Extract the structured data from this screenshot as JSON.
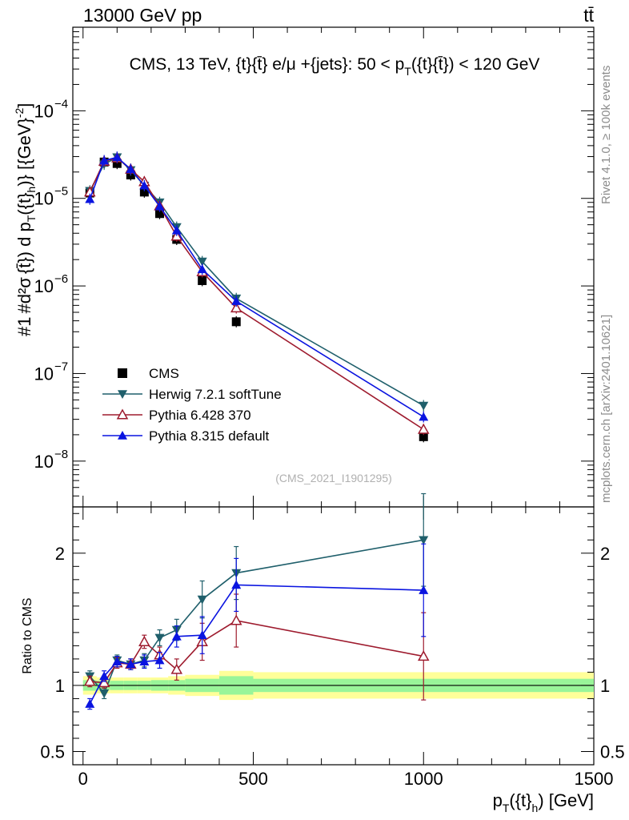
{
  "header": {
    "left": "13000 GeV pp",
    "right": "tt̄"
  },
  "side_labels": {
    "rivet": "Rivet 4.1.0, ≥ 100k events",
    "mcplots": "mcplots.cern.ch [arXiv:2401.10621]"
  },
  "colors": {
    "cms": "#000000",
    "herwig": "#1f5f6b",
    "pythia6": "#9e1b2e",
    "pythia8": "#0a14e0",
    "band_inner": "#99f599",
    "band_outer": "#ffff99"
  },
  "chart_data": [
    {
      "type": "line",
      "panel": "main",
      "title": "CMS, 13 TeV, {t}{t̄} e/μ +{jets}: 50 <  p_T({t}{t̄}) < 120 GeV",
      "title_parts": {
        "pre": "CMS, 13 TeV, {t}{t̄} e/μ +{jets}: 50 <  p",
        "sub": "T",
        "post": "({t}{t̄}) < 120 GeV"
      },
      "watermark": "(CMS_2021_I1901295)",
      "ylabel": "#1/σ_norm # d²σ/d p_T({t̄}) d p_T({t}_h) [{GeV}⁻²]",
      "ylabel_parts": {
        "top_a": "#",
        "top_b": "1",
        "bot_a": "#σ",
        "bot_b": "norm",
        "num": "#d²σ",
        "den": "d p",
        "den_sub": "T",
        "den_post": "({t",
        "tail": "{t̄}) d p",
        "tail_sub": "T",
        "tail_post": "({t}",
        "tail_sub2": "h",
        "tail_end": ")} [{GeV}",
        "tail_sup": "-2",
        "tail_close": "]"
      },
      "yscale": "log",
      "ylim": [
        3e-09,
        0.0009
      ],
      "xlim": [
        -30,
        1500
      ],
      "yticks": [
        {
          "value": 1e-08,
          "label": "10",
          "exp": "−8"
        },
        {
          "value": 1e-07,
          "label": "10",
          "exp": "−7"
        },
        {
          "value": 1e-06,
          "label": "10",
          "exp": "−6"
        },
        {
          "value": 1e-05,
          "label": "10",
          "exp": "−5"
        },
        {
          "value": 0.0001,
          "label": "10",
          "exp": "−4"
        }
      ],
      "x": [
        20,
        62,
        100,
        140,
        180,
        225,
        275,
        350,
        450,
        1000
      ],
      "series": [
        {
          "name": "CMS",
          "key": "cms",
          "marker": "square",
          "values": [
            1.15e-05,
            2.6e-05,
            2.5e-05,
            1.85e-05,
            1.18e-05,
            6.7e-06,
            3.4e-06,
            1.15e-06,
            3.9e-07,
            1.9e-08
          ]
        },
        {
          "name": "Herwig 7.2.1 softTune",
          "key": "herwig",
          "marker": "triangle-down",
          "values": [
            1.22e-05,
            2.45e-05,
            2.95e-05,
            2.1e-05,
            1.4e-05,
            9e-06,
            4.7e-06,
            1.9e-06,
            7.2e-07,
            4.3e-08
          ]
        },
        {
          "name": "Pythia 6.428 370",
          "key": "pythia6",
          "marker": "triangle-open",
          "values": [
            1.18e-05,
            2.65e-05,
            2.9e-05,
            2.15e-05,
            1.55e-05,
            8.2e-06,
            3.7e-06,
            1.45e-06,
            5.6e-07,
            2.3e-08
          ]
        },
        {
          "name": "Pythia 8.315 default",
          "key": "pythia8",
          "marker": "triangle-up",
          "values": [
            9.8e-06,
            2.7e-05,
            2.95e-05,
            2.15e-05,
            1.4e-05,
            8.1e-06,
            4.3e-06,
            1.55e-06,
            6.7e-07,
            3.2e-08
          ]
        }
      ],
      "legend": [
        "CMS",
        "Herwig 7.2.1 softTune",
        "Pythia 6.428 370",
        "Pythia 8.315 default"
      ]
    },
    {
      "type": "line",
      "panel": "ratio",
      "ylabel": "Ratio to CMS",
      "xlabel": "p_T({t}_h) [GeV]",
      "xlabel_parts": {
        "pre": "p",
        "sub": "T",
        "mid": "({t}",
        "sub2": "h",
        "post": ") [GeV]"
      },
      "ylim": [
        0.4,
        2.35
      ],
      "xlim": [
        -30,
        1500
      ],
      "yticks": [
        {
          "value": 0.5,
          "label": "0.5"
        },
        {
          "value": 1,
          "label": "1"
        },
        {
          "value": 2,
          "label": "2"
        }
      ],
      "xticks": [
        {
          "value": 0,
          "label": "0"
        },
        {
          "value": 500,
          "label": "500"
        },
        {
          "value": 1000,
          "label": "1000"
        },
        {
          "value": 1500,
          "label": "1500"
        }
      ],
      "x": [
        20,
        62,
        100,
        140,
        180,
        225,
        275,
        350,
        450,
        1000
      ],
      "bins": [
        0,
        40,
        80,
        120,
        160,
        200,
        250,
        300,
        400,
        500,
        1500
      ],
      "band_inner_halfwidth": [
        0.04,
        0.035,
        0.035,
        0.035,
        0.035,
        0.04,
        0.04,
        0.05,
        0.07,
        0.05
      ],
      "band_outer_halfwidth": [
        0.07,
        0.06,
        0.06,
        0.06,
        0.06,
        0.06,
        0.07,
        0.08,
        0.11,
        0.1
      ],
      "series": [
        {
          "name": "Herwig 7.2.1 softTune",
          "key": "herwig",
          "marker": "triangle-down",
          "values": [
            1.07,
            0.94,
            1.19,
            1.16,
            1.19,
            1.36,
            1.42,
            1.65,
            1.85,
            2.1
          ],
          "errors": [
            0.04,
            0.04,
            0.04,
            0.04,
            0.05,
            0.06,
            0.08,
            0.14,
            0.2,
            0.35
          ]
        },
        {
          "name": "Pythia 6.428 370",
          "key": "pythia6",
          "marker": "triangle-open",
          "values": [
            1.03,
            1.02,
            1.17,
            1.16,
            1.33,
            1.23,
            1.12,
            1.33,
            1.49,
            1.22
          ],
          "errors": [
            0.04,
            0.04,
            0.04,
            0.04,
            0.05,
            0.06,
            0.08,
            0.14,
            0.2,
            0.33
          ]
        },
        {
          "name": "Pythia 8.315 default",
          "key": "pythia8",
          "marker": "triangle-up",
          "values": [
            0.86,
            1.07,
            1.18,
            1.16,
            1.18,
            1.19,
            1.37,
            1.38,
            1.76,
            1.72
          ],
          "errors": [
            0.04,
            0.04,
            0.04,
            0.04,
            0.05,
            0.06,
            0.08,
            0.14,
            0.2,
            0.35
          ]
        }
      ]
    }
  ]
}
